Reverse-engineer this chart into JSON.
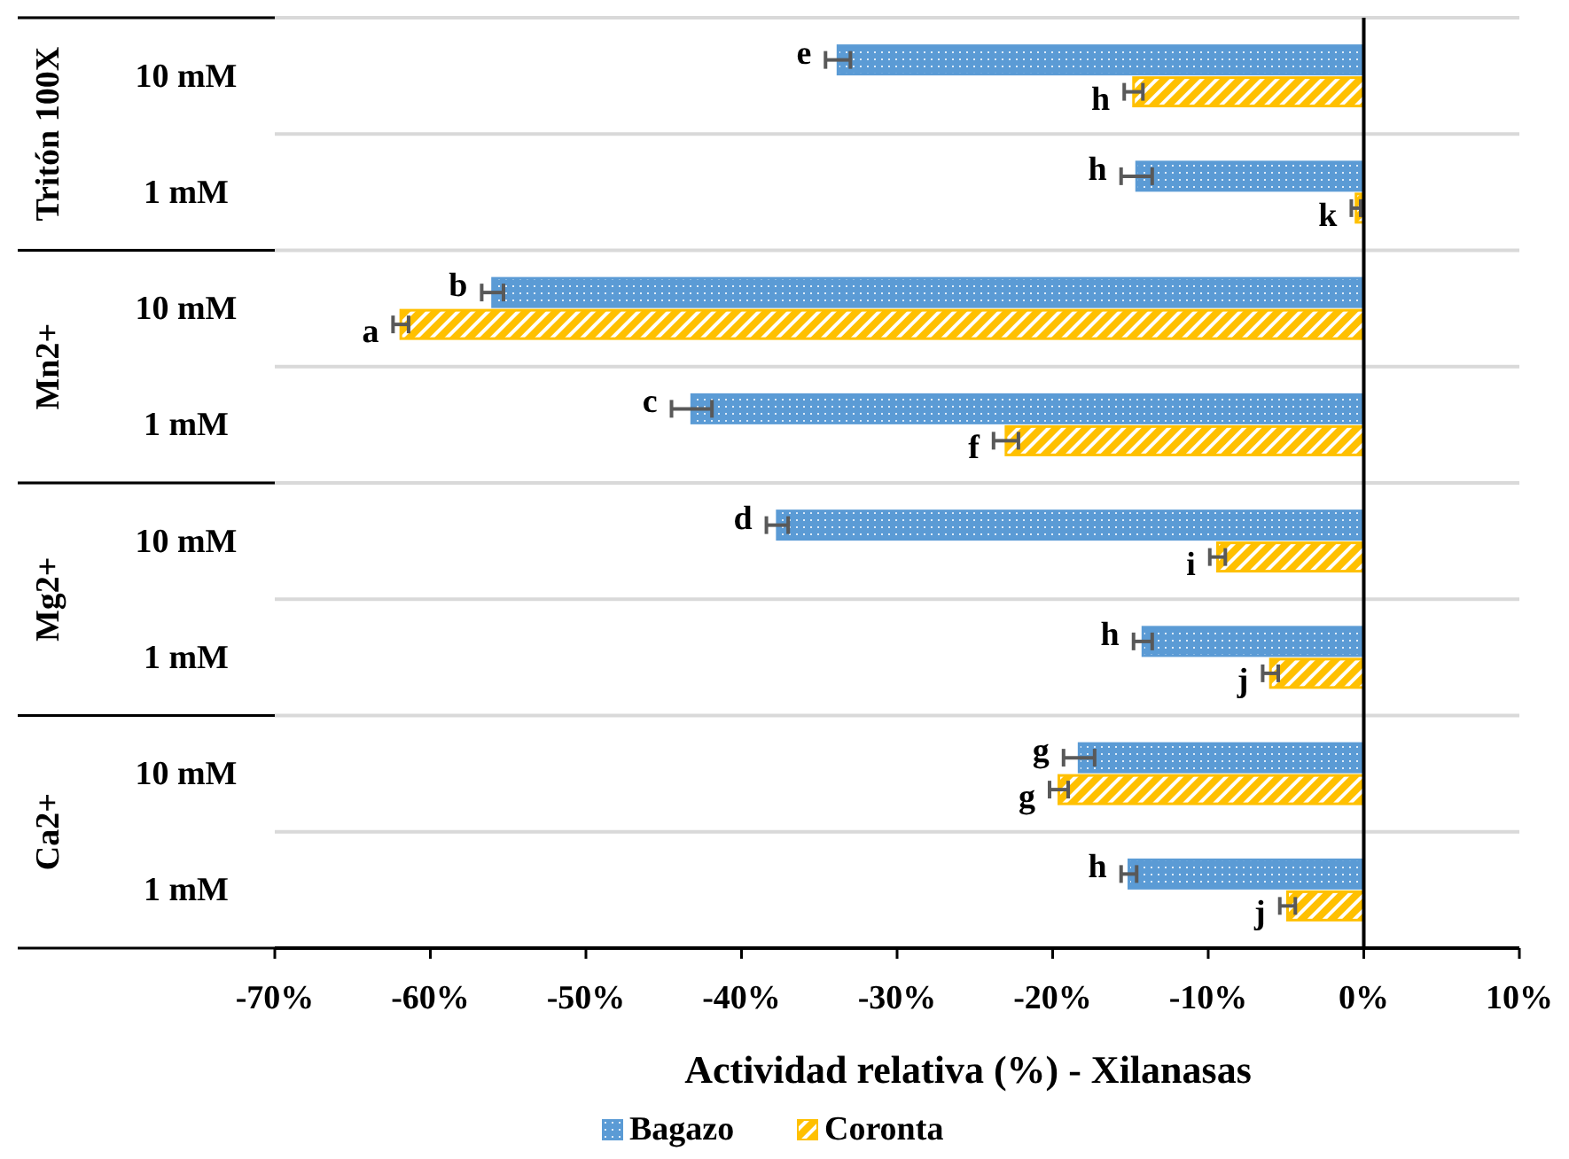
{
  "chart_data": {
    "type": "bar",
    "orientation": "horizontal",
    "xlabel": "Actividad relativa (%) - Xilanasas",
    "categories": [
      "10 mM",
      "1 mM",
      "10 mM",
      "1 mM",
      "10 mM",
      "1 mM",
      "10 mM",
      "1 mM"
    ],
    "annotations": [
      "Tritón 100X",
      "Mn2+",
      "Mg2+",
      "Ca2+"
    ],
    "series": [
      {
        "name": "Bagazo",
        "color": "#5b9bd5",
        "values": [
          -33.8,
          -14.6,
          -56,
          -43.2,
          -37.7,
          -14.2,
          -18.3,
          -15.1
        ],
        "errors": [
          0.8,
          1,
          0.7,
          1.3,
          0.7,
          0.6,
          1,
          0.5
        ],
        "value_labels": [
          "e",
          "h",
          "b",
          "c",
          "d",
          "h",
          "g",
          "h"
        ]
      },
      {
        "name": "Coronta",
        "color": "#ffc000",
        "values": [
          -14.8,
          -0.5,
          -61.9,
          -23,
          -9.4,
          -6,
          -19.6,
          -4.9
        ],
        "errors": [
          0.6,
          0.3,
          0.5,
          0.8,
          0.5,
          0.5,
          0.6,
          0.5
        ],
        "value_labels": [
          "h",
          "k",
          "a",
          "f",
          "i",
          "j",
          "g",
          "j"
        ]
      }
    ],
    "xlim": [
      -70,
      10
    ],
    "xticks": [
      {
        "value": -70,
        "label": "-70%"
      },
      {
        "value": -60,
        "label": "-60%"
      },
      {
        "value": -50,
        "label": "-50%"
      },
      {
        "value": -40,
        "label": "-40%"
      },
      {
        "value": -30,
        "label": "-30%"
      },
      {
        "value": -20,
        "label": "-20%"
      },
      {
        "value": -10,
        "label": "-10%"
      },
      {
        "value": 0,
        "label": "0%"
      },
      {
        "value": 10,
        "label": "10%"
      }
    ],
    "grid": true,
    "legend": "bottom"
  }
}
